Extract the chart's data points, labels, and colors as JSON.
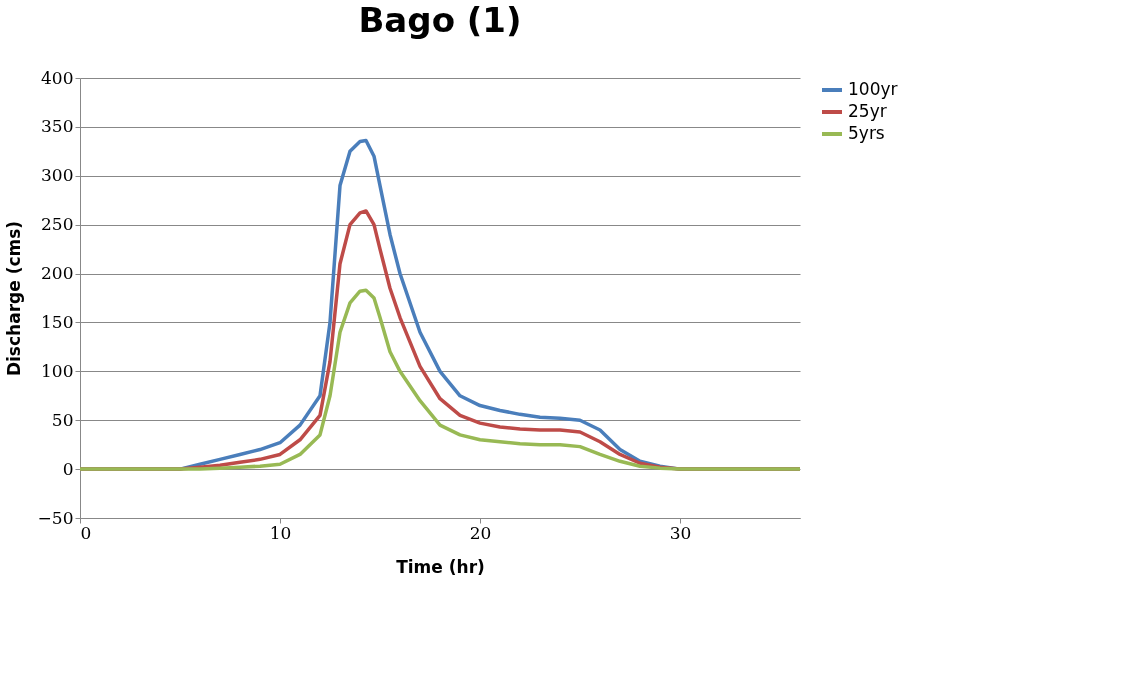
{
  "chart_data": {
    "type": "line",
    "title": "Bago (1)",
    "xlabel": "Time (hr)",
    "ylabel": "Discharge (cms)",
    "x": [
      0,
      5,
      6,
      7,
      8,
      9,
      10,
      11,
      12,
      12.5,
      13,
      13.5,
      14,
      14.3,
      14.7,
      15,
      15.5,
      16,
      17,
      18,
      19,
      20,
      21,
      22,
      23,
      24,
      25,
      26,
      27,
      28,
      29,
      30,
      32,
      36
    ],
    "series": [
      {
        "name": "100yr",
        "color": "#4a7ebb",
        "values": [
          0,
          0,
          5,
          10,
          15,
          20,
          27,
          45,
          75,
          150,
          290,
          325,
          335,
          336,
          320,
          290,
          240,
          200,
          140,
          100,
          75,
          65,
          60,
          56,
          53,
          52,
          50,
          40,
          20,
          8,
          3,
          0,
          0,
          0
        ]
      },
      {
        "name": "25yr",
        "color": "#be4b48",
        "values": [
          0,
          0,
          2,
          4,
          7,
          10,
          15,
          30,
          55,
          110,
          210,
          250,
          262,
          264,
          250,
          225,
          185,
          155,
          105,
          72,
          55,
          47,
          43,
          41,
          40,
          40,
          38,
          28,
          15,
          6,
          2,
          0,
          0,
          0
        ]
      },
      {
        "name": "5yrs",
        "color": "#98b954",
        "values": [
          0,
          0,
          0,
          1,
          2,
          3,
          5,
          15,
          35,
          75,
          140,
          170,
          182,
          183,
          175,
          155,
          120,
          100,
          70,
          45,
          35,
          30,
          28,
          26,
          25,
          25,
          23,
          15,
          8,
          3,
          1,
          0,
          0,
          0
        ]
      }
    ],
    "xlim": [
      0,
      36
    ],
    "xticks": [
      0,
      10,
      20,
      30
    ],
    "ylim": [
      -50,
      400
    ],
    "yticks": [
      -50,
      0,
      50,
      100,
      150,
      200,
      250,
      300,
      350,
      400
    ],
    "grid": "y",
    "legend": "right",
    "marker": "none",
    "line_style": "solid"
  }
}
